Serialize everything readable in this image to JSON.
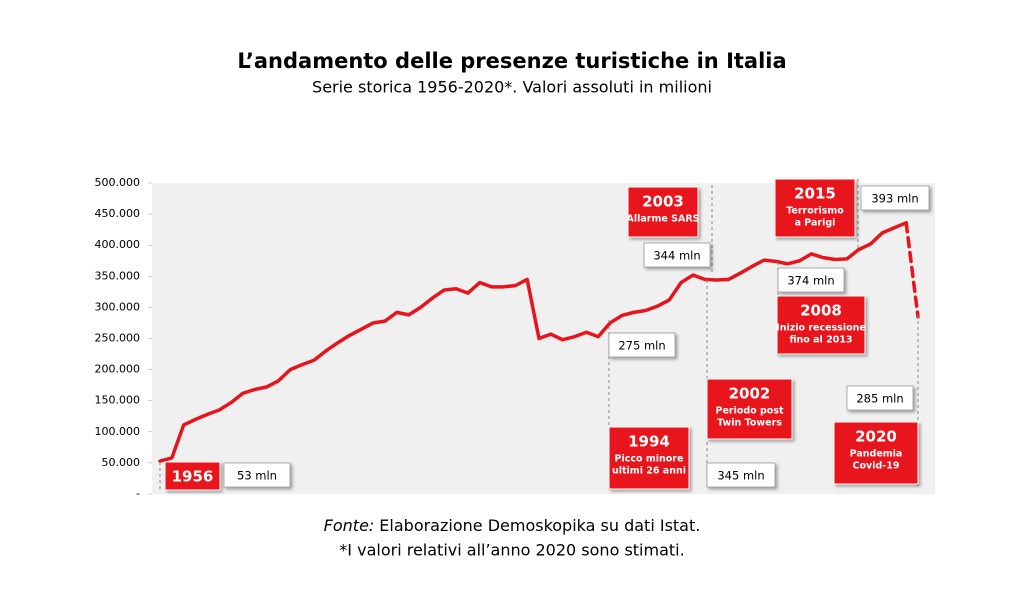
{
  "chart_data": {
    "type": "line",
    "title": "L’andamento delle presenze turistiche in Italia",
    "subtitle": "Serie storica 1956-2020*. Valori assoluti in milioni",
    "x": [
      1956,
      1957,
      1958,
      1959,
      1960,
      1961,
      1962,
      1963,
      1964,
      1965,
      1966,
      1967,
      1968,
      1969,
      1970,
      1971,
      1972,
      1973,
      1974,
      1975,
      1976,
      1977,
      1978,
      1979,
      1980,
      1981,
      1982,
      1983,
      1984,
      1985,
      1986,
      1987,
      1988,
      1989,
      1990,
      1991,
      1992,
      1993,
      1994,
      1995,
      1996,
      1997,
      1998,
      1999,
      2000,
      2001,
      2002,
      2003,
      2004,
      2005,
      2006,
      2007,
      2008,
      2009,
      2010,
      2011,
      2012,
      2013,
      2014,
      2015,
      2016,
      2017,
      2018,
      2019,
      2020
    ],
    "xlim": [
      1956,
      2020
    ],
    "series": [
      {
        "color": "#e8141c",
        "style": "solid",
        "values": [
          53000,
          58000,
          111000,
          120000,
          128000,
          135000,
          147000,
          162000,
          168000,
          172000,
          182000,
          200000,
          208000,
          215000,
          230000,
          243000,
          255000,
          265000,
          275000,
          278000,
          292000,
          288000,
          300000,
          315000,
          328000,
          330000,
          323000,
          340000,
          333000,
          333000,
          335000,
          345000,
          250000,
          257000,
          248000,
          253000,
          260000,
          253000,
          275000,
          287000,
          292000,
          295000,
          302000,
          312000,
          340000,
          352000,
          345000,
          344000,
          345000,
          355000,
          366000,
          376000,
          374000,
          370000,
          375000,
          386000,
          380000,
          377000,
          378000,
          393000,
          402000,
          420000,
          428000,
          436000,
          null
        ]
      },
      {
        "color": "#e8141c",
        "style": "dashed",
        "values": [
          null,
          null,
          null,
          null,
          null,
          null,
          null,
          null,
          null,
          null,
          null,
          null,
          null,
          null,
          null,
          null,
          null,
          null,
          null,
          null,
          null,
          null,
          null,
          null,
          null,
          null,
          null,
          null,
          null,
          null,
          null,
          null,
          null,
          null,
          null,
          null,
          null,
          null,
          null,
          null,
          null,
          null,
          null,
          null,
          null,
          null,
          null,
          null,
          null,
          null,
          null,
          null,
          null,
          null,
          null,
          null,
          null,
          null,
          null,
          null,
          null,
          null,
          null,
          436000,
          285000
        ]
      }
    ],
    "ylim": [
      0,
      500000
    ],
    "yticks": [
      {
        "value": 0,
        "label": "-"
      },
      {
        "value": 50000,
        "label": "50.000"
      },
      {
        "value": 100000,
        "label": "100.000"
      },
      {
        "value": 150000,
        "label": "150.000"
      },
      {
        "value": 200000,
        "label": "200.000"
      },
      {
        "value": 250000,
        "label": "250.000"
      },
      {
        "value": 300000,
        "label": "300.000"
      },
      {
        "value": 350000,
        "label": "350.000"
      },
      {
        "value": 400000,
        "label": "400.000"
      },
      {
        "value": 450000,
        "label": "450.000"
      },
      {
        "value": 500000,
        "label": "500.000"
      }
    ],
    "annotations": [
      {
        "title": "1956",
        "lines": [],
        "value": "53 mln"
      },
      {
        "title": "2003",
        "lines": [
          "Allarme SARS"
        ],
        "value": "344 mln"
      },
      {
        "title": "2015",
        "lines": [
          "Terrorismo",
          "a Parigi"
        ],
        "value": "393 mln"
      },
      {
        "title": "2008",
        "lines": [
          "Inizio recessione",
          "fino al 2013"
        ],
        "value": "374 mln"
      },
      {
        "title": "1994",
        "lines": [
          "Picco minore",
          "ultimi 26 anni"
        ],
        "value": "275 mln"
      },
      {
        "title": "2002",
        "lines": [
          "Periodo post",
          "Twin Towers"
        ],
        "value": "345 mln"
      },
      {
        "title": "2020",
        "lines": [
          "Pandemia",
          "Covid-19"
        ],
        "value": "285 mln"
      }
    ],
    "source_label": "Fonte:",
    "source": "Elaborazione Demoskopika su dati Istat.",
    "note": "*I valori relativi all’anno 2020 sono stimati."
  }
}
